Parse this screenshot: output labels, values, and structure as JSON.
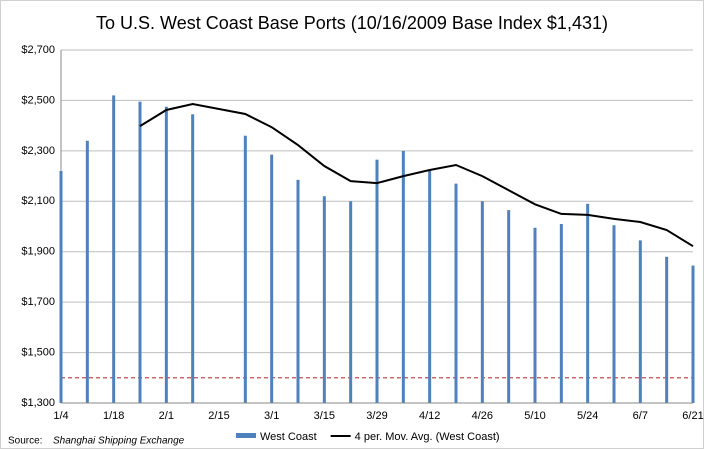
{
  "chart_data": {
    "type": "bar_line",
    "title": "To U.S. West Coast Base Ports (10/16/2009 Base Index $1,431)",
    "categories": [
      "1/4",
      null,
      "1/18",
      null,
      "2/1",
      null,
      "2/15",
      null,
      "3/1",
      null,
      "3/15",
      null,
      "3/29",
      null,
      "4/12",
      null,
      "4/26",
      null,
      "5/10",
      null,
      "5/24",
      null,
      "6/7",
      null,
      "6/21"
    ],
    "series": [
      {
        "name": "West Coast",
        "kind": "bar",
        "color": "#4f81bd",
        "values": [
          2220,
          2340,
          2520,
          2495,
          2475,
          2445,
          null,
          2360,
          2285,
          2185,
          2120,
          2100,
          2265,
          2300,
          2225,
          2170,
          2100,
          2065,
          1995,
          2010,
          2090,
          2005,
          1945,
          1880,
          1845
        ]
      },
      {
        "name": "4 per. Mov. Avg. (West Coast)",
        "kind": "line",
        "color": "#000000",
        "values": [
          null,
          null,
          null,
          2398,
          2462,
          2486,
          2466,
          2446,
          2394,
          2323,
          2240,
          2180,
          2172,
          2200,
          2224,
          2244,
          2200,
          2144,
          2088,
          2050,
          2046,
          2030,
          2018,
          1986,
          1922
        ]
      }
    ],
    "reference_line": {
      "value": 1400,
      "color": "#c0504d"
    },
    "ylim": [
      1300,
      2700
    ],
    "yticks": [
      {
        "value": 1300,
        "label": "$1,300"
      },
      {
        "value": 1500,
        "label": "$1,500"
      },
      {
        "value": 1700,
        "label": "$1,700"
      },
      {
        "value": 1900,
        "label": "$1,900"
      },
      {
        "value": 2100,
        "label": "$2,100"
      },
      {
        "value": 2300,
        "label": "$2,300"
      },
      {
        "value": 2500,
        "label": "$2,500"
      },
      {
        "value": 2700,
        "label": "$2,700"
      }
    ],
    "grid": true,
    "legend": "bottom",
    "source_label": "Source:",
    "source": "Shanghai Shipping Exchange"
  }
}
